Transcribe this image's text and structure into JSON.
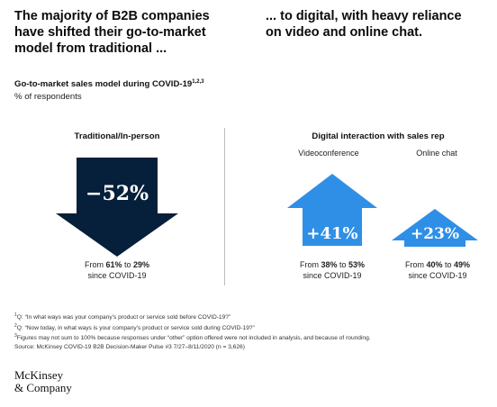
{
  "headline_left": [
    "The majority of B2B companies",
    "have shifted their go-to-market",
    "model from traditional ..."
  ],
  "headline_right": [
    "... to digital, with heavy reliance",
    "on video and online chat."
  ],
  "subtitle": "Go-to-market sales model during COVID-19",
  "subtitle_refs": "1,2,3",
  "unit": "% of respondents",
  "left_section_title": "Traditional/In-person",
  "right_section_title": "Digital interaction with sales rep",
  "colors": {
    "down_arrow": "#061f3a",
    "up_arrow": "#2f8fe6",
    "divider": "#bdbdbd",
    "arrow_text": "#ffffff"
  },
  "chart_data": {
    "type": "arrow-change",
    "items": [
      {
        "group": "Traditional/In-person",
        "label": "",
        "direction": "down",
        "change_label": "−52%",
        "from": 61,
        "to": 29,
        "from_label": "61%",
        "to_label": "29%",
        "caption_prefix": "From ",
        "caption_mid": " to ",
        "caption_suffix": "since COVID-19"
      },
      {
        "group": "Digital interaction with sales rep",
        "label": "Videoconference",
        "direction": "up",
        "change_label": "+41%",
        "from": 38,
        "to": 53,
        "from_label": "38%",
        "to_label": "53%",
        "caption_prefix": "From ",
        "caption_mid": " to ",
        "caption_suffix": "since COVID-19"
      },
      {
        "group": "Digital interaction with sales rep",
        "label": "Online chat",
        "direction": "up",
        "change_label": "+23%",
        "from": 40,
        "to": 49,
        "from_label": "40%",
        "to_label": "49%",
        "caption_prefix": "From ",
        "caption_mid": " to ",
        "caption_suffix": "since COVID-19"
      }
    ]
  },
  "footnotes": [
    {
      "sup": "1",
      "text": "Q: “In what ways was your company’s product or service sold before COVID-19?”"
    },
    {
      "sup": "2",
      "text": "Q: “Now today, in what ways is your company’s product or service sold during COVID-19?”"
    },
    {
      "sup": "3",
      "text": "Figures may not sum to 100% because responses under “other” option offered were not included in analysis, and because of rounding."
    }
  ],
  "source": "Source: McKinsey COVID-19 B2B Decision-Maker Pulse #3 7/27–8/11/2020 (n = 3,626)",
  "logo": [
    "McKinsey",
    "& Company"
  ]
}
